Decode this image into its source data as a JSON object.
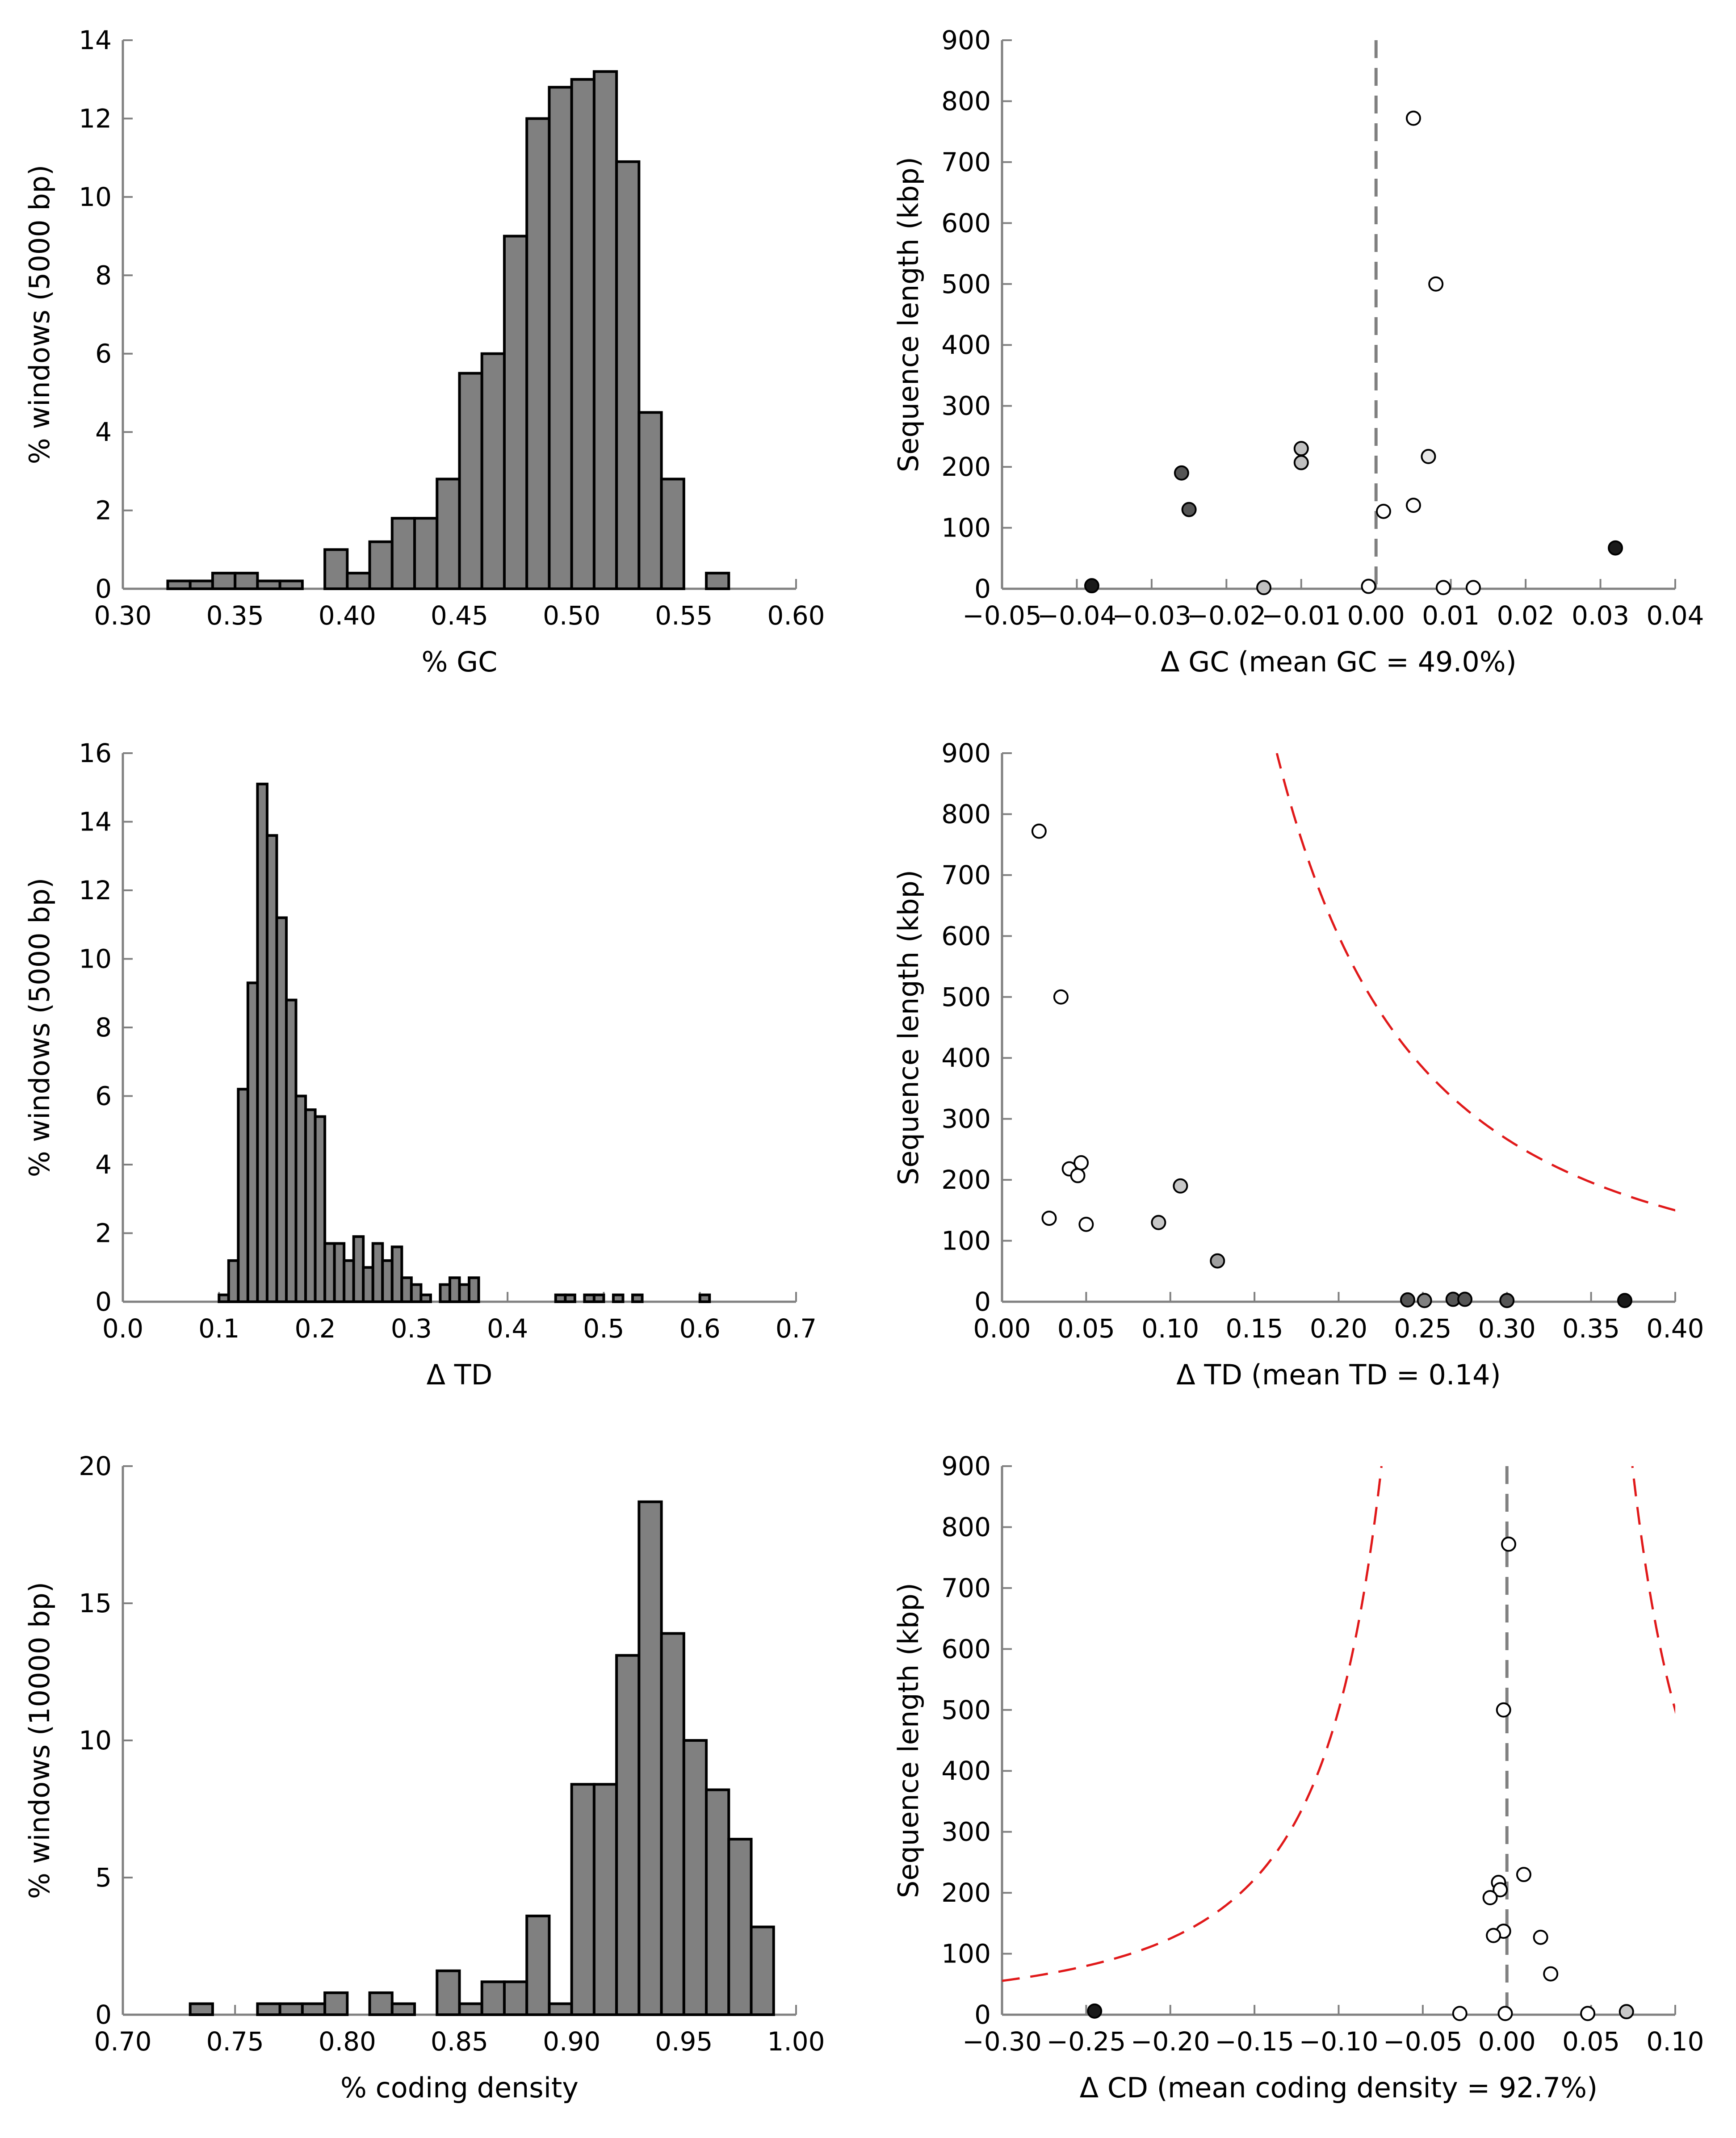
{
  "colors": {
    "bar_fill": "#808080",
    "bar_edge": "#000000",
    "axis": "#808080",
    "funnel": "#e0191a",
    "center_line": "#808080"
  },
  "chart_data": [
    {
      "id": "gc_hist",
      "type": "bar",
      "xlabel": "% GC",
      "ylabel": "% windows (5000 bp)",
      "xlim": [
        0.3,
        0.6
      ],
      "ylim": [
        0,
        14
      ],
      "xticks": [
        "0.30",
        "0.35",
        "0.40",
        "0.45",
        "0.50",
        "0.55",
        "0.60"
      ],
      "yticks": [
        "0",
        "2",
        "4",
        "6",
        "8",
        "10",
        "12",
        "14"
      ],
      "bin_width": 0.01,
      "bins": [
        {
          "x": 0.32,
          "value": 0.2
        },
        {
          "x": 0.33,
          "value": 0.2
        },
        {
          "x": 0.34,
          "value": 0.4
        },
        {
          "x": 0.35,
          "value": 0.4
        },
        {
          "x": 0.36,
          "value": 0.2
        },
        {
          "x": 0.37,
          "value": 0.2
        },
        {
          "x": 0.39,
          "value": 1.0
        },
        {
          "x": 0.4,
          "value": 0.4
        },
        {
          "x": 0.41,
          "value": 1.2
        },
        {
          "x": 0.42,
          "value": 1.8
        },
        {
          "x": 0.43,
          "value": 1.8
        },
        {
          "x": 0.44,
          "value": 2.8
        },
        {
          "x": 0.45,
          "value": 5.5
        },
        {
          "x": 0.46,
          "value": 6.0
        },
        {
          "x": 0.47,
          "value": 9.0
        },
        {
          "x": 0.48,
          "value": 12.0
        },
        {
          "x": 0.49,
          "value": 12.8
        },
        {
          "x": 0.5,
          "value": 13.0
        },
        {
          "x": 0.51,
          "value": 13.2
        },
        {
          "x": 0.52,
          "value": 10.9
        },
        {
          "x": 0.53,
          "value": 4.5
        },
        {
          "x": 0.54,
          "value": 2.8
        },
        {
          "x": 0.56,
          "value": 0.4
        }
      ]
    },
    {
      "id": "gc_scatter",
      "type": "scatter",
      "xlabel": "Δ GC (mean GC = 49.0%)",
      "ylabel": "Sequence length (kbp)",
      "xlim": [
        -0.05,
        0.04
      ],
      "ylim": [
        0,
        900
      ],
      "xticks": [
        "−0.05",
        "−0.04",
        "−0.03",
        "−0.02",
        "−0.01",
        "0.00",
        "0.01",
        "0.02",
        "0.03",
        "0.04"
      ],
      "yticks": [
        "0",
        "100",
        "200",
        "300",
        "400",
        "500",
        "600",
        "700",
        "800",
        "900"
      ],
      "center_line": 0.0,
      "funnel_k": 2.85,
      "points": [
        {
          "x": -0.038,
          "y": 5,
          "fill": "#1a1a1a"
        },
        {
          "x": -0.026,
          "y": 190,
          "fill": "#555555"
        },
        {
          "x": -0.025,
          "y": 130,
          "fill": "#555555"
        },
        {
          "x": -0.015,
          "y": 2,
          "fill": "#c0c0c0"
        },
        {
          "x": -0.01,
          "y": 230,
          "fill": "#c0c0c0"
        },
        {
          "x": -0.01,
          "y": 207,
          "fill": "#c0c0c0"
        },
        {
          "x": -0.001,
          "y": 4,
          "fill": "#ffffff"
        },
        {
          "x": 0.001,
          "y": 127,
          "fill": "#ffffff"
        },
        {
          "x": 0.005,
          "y": 772,
          "fill": "#ffffff"
        },
        {
          "x": 0.005,
          "y": 137,
          "fill": "#ffffff"
        },
        {
          "x": 0.007,
          "y": 217,
          "fill": "#e8e8e8"
        },
        {
          "x": 0.008,
          "y": 500,
          "fill": "#ffffff"
        },
        {
          "x": 0.009,
          "y": 2,
          "fill": "#ffffff"
        },
        {
          "x": 0.013,
          "y": 2,
          "fill": "#ffffff"
        },
        {
          "x": 0.032,
          "y": 67,
          "fill": "#1a1a1a"
        }
      ]
    },
    {
      "id": "td_hist",
      "type": "bar",
      "xlabel": "Δ TD",
      "ylabel": "% windows (5000 bp)",
      "xlim": [
        0.0,
        0.7
      ],
      "ylim": [
        0,
        16
      ],
      "xticks": [
        "0.0",
        "0.1",
        "0.2",
        "0.3",
        "0.4",
        "0.5",
        "0.6",
        "0.7"
      ],
      "yticks": [
        "0",
        "2",
        "4",
        "6",
        "8",
        "10",
        "12",
        "14",
        "16"
      ],
      "bin_width": 0.01,
      "bins": [
        {
          "x": 0.1,
          "value": 0.2
        },
        {
          "x": 0.11,
          "value": 1.2
        },
        {
          "x": 0.12,
          "value": 6.2
        },
        {
          "x": 0.13,
          "value": 9.3
        },
        {
          "x": 0.14,
          "value": 15.1
        },
        {
          "x": 0.15,
          "value": 13.6
        },
        {
          "x": 0.16,
          "value": 11.2
        },
        {
          "x": 0.17,
          "value": 8.8
        },
        {
          "x": 0.18,
          "value": 6.0
        },
        {
          "x": 0.19,
          "value": 5.6
        },
        {
          "x": 0.2,
          "value": 5.4
        },
        {
          "x": 0.21,
          "value": 1.7
        },
        {
          "x": 0.22,
          "value": 1.7
        },
        {
          "x": 0.23,
          "value": 1.2
        },
        {
          "x": 0.24,
          "value": 1.9
        },
        {
          "x": 0.25,
          "value": 1.0
        },
        {
          "x": 0.26,
          "value": 1.7
        },
        {
          "x": 0.27,
          "value": 1.2
        },
        {
          "x": 0.28,
          "value": 1.6
        },
        {
          "x": 0.29,
          "value": 0.7
        },
        {
          "x": 0.3,
          "value": 0.5
        },
        {
          "x": 0.31,
          "value": 0.2
        },
        {
          "x": 0.33,
          "value": 0.5
        },
        {
          "x": 0.34,
          "value": 0.7
        },
        {
          "x": 0.35,
          "value": 0.5
        },
        {
          "x": 0.36,
          "value": 0.7
        },
        {
          "x": 0.45,
          "value": 0.2
        },
        {
          "x": 0.46,
          "value": 0.2
        },
        {
          "x": 0.48,
          "value": 0.2
        },
        {
          "x": 0.49,
          "value": 0.2
        },
        {
          "x": 0.51,
          "value": 0.2
        },
        {
          "x": 0.53,
          "value": 0.2
        },
        {
          "x": 0.6,
          "value": 0.2
        }
      ]
    },
    {
      "id": "td_scatter",
      "type": "scatter",
      "xlabel": "Δ TD (mean TD = 0.14)",
      "ylabel": "Sequence length (kbp)",
      "xlim": [
        0.0,
        0.4
      ],
      "ylim": [
        0,
        900
      ],
      "xticks": [
        "0.00",
        "0.05",
        "0.10",
        "0.15",
        "0.20",
        "0.25",
        "0.30",
        "0.35",
        "0.40"
      ],
      "yticks": [
        "0",
        "100",
        "200",
        "300",
        "400",
        "500",
        "600",
        "700",
        "800",
        "900"
      ],
      "funnel_k": 24.0,
      "points": [
        {
          "x": 0.022,
          "y": 772,
          "fill": "#ffffff"
        },
        {
          "x": 0.035,
          "y": 500,
          "fill": "#ffffff"
        },
        {
          "x": 0.04,
          "y": 218,
          "fill": "#ffffff"
        },
        {
          "x": 0.045,
          "y": 207,
          "fill": "#ffffff"
        },
        {
          "x": 0.047,
          "y": 228,
          "fill": "#ffffff"
        },
        {
          "x": 0.028,
          "y": 137,
          "fill": "#ffffff"
        },
        {
          "x": 0.05,
          "y": 127,
          "fill": "#ffffff"
        },
        {
          "x": 0.093,
          "y": 130,
          "fill": "#c8c8c8"
        },
        {
          "x": 0.106,
          "y": 190,
          "fill": "#c8c8c8"
        },
        {
          "x": 0.128,
          "y": 67,
          "fill": "#a0a0a0"
        },
        {
          "x": 0.241,
          "y": 3,
          "fill": "#555555"
        },
        {
          "x": 0.251,
          "y": 2,
          "fill": "#808080"
        },
        {
          "x": 0.268,
          "y": 4,
          "fill": "#555555"
        },
        {
          "x": 0.275,
          "y": 4,
          "fill": "#555555"
        },
        {
          "x": 0.3,
          "y": 2,
          "fill": "#555555"
        },
        {
          "x": 0.37,
          "y": 2,
          "fill": "#1a1a1a"
        }
      ]
    },
    {
      "id": "cd_hist",
      "type": "bar",
      "xlabel": "% coding density",
      "ylabel": "% windows (10000 bp)",
      "xlim": [
        0.7,
        1.0
      ],
      "ylim": [
        0,
        20
      ],
      "xticks": [
        "0.70",
        "0.75",
        "0.80",
        "0.85",
        "0.90",
        "0.95",
        "1.00"
      ],
      "yticks": [
        "0",
        "5",
        "10",
        "15",
        "20"
      ],
      "bin_width": 0.01,
      "bins": [
        {
          "x": 0.73,
          "value": 0.4
        },
        {
          "x": 0.76,
          "value": 0.4
        },
        {
          "x": 0.77,
          "value": 0.4
        },
        {
          "x": 0.78,
          "value": 0.4
        },
        {
          "x": 0.79,
          "value": 0.8
        },
        {
          "x": 0.81,
          "value": 0.8
        },
        {
          "x": 0.82,
          "value": 0.4
        },
        {
          "x": 0.84,
          "value": 1.6
        },
        {
          "x": 0.85,
          "value": 0.4
        },
        {
          "x": 0.86,
          "value": 1.2
        },
        {
          "x": 0.87,
          "value": 1.2
        },
        {
          "x": 0.88,
          "value": 3.6
        },
        {
          "x": 0.89,
          "value": 0.4
        },
        {
          "x": 0.9,
          "value": 8.4
        },
        {
          "x": 0.91,
          "value": 8.4
        },
        {
          "x": 0.92,
          "value": 13.1
        },
        {
          "x": 0.93,
          "value": 18.7
        },
        {
          "x": 0.94,
          "value": 13.9
        },
        {
          "x": 0.95,
          "value": 10.0
        },
        {
          "x": 0.96,
          "value": 8.2
        },
        {
          "x": 0.97,
          "value": 6.4
        },
        {
          "x": 0.98,
          "value": 3.2
        }
      ]
    },
    {
      "id": "cd_scatter",
      "type": "scatter",
      "xlabel": "Δ CD (mean coding density = 92.7%)",
      "ylabel": "Sequence length (kbp)",
      "xlim": [
        -0.3,
        0.1
      ],
      "ylim": [
        0,
        900
      ],
      "xticks": [
        "−0.30",
        "−0.25",
        "−0.20",
        "−0.15",
        "−0.10",
        "−0.05",
        "0.00",
        "0.05",
        "0.10"
      ],
      "yticks": [
        "0",
        "100",
        "200",
        "300",
        "400",
        "500",
        "600",
        "700",
        "800",
        "900"
      ],
      "center_line": 0.0,
      "funnel_k": 5.0,
      "points": [
        {
          "x": -0.245,
          "y": 6,
          "fill": "#1a1a1a"
        },
        {
          "x": -0.028,
          "y": 2,
          "fill": "#ffffff"
        },
        {
          "x": 0.001,
          "y": 772,
          "fill": "#ffffff"
        },
        {
          "x": -0.002,
          "y": 500,
          "fill": "#ffffff"
        },
        {
          "x": 0.01,
          "y": 230,
          "fill": "#ffffff"
        },
        {
          "x": -0.005,
          "y": 217,
          "fill": "#ffffff"
        },
        {
          "x": -0.004,
          "y": 205,
          "fill": "#ffffff"
        },
        {
          "x": -0.01,
          "y": 192,
          "fill": "#ffffff"
        },
        {
          "x": -0.002,
          "y": 137,
          "fill": "#ffffff"
        },
        {
          "x": -0.008,
          "y": 130,
          "fill": "#ffffff"
        },
        {
          "x": 0.02,
          "y": 127,
          "fill": "#ffffff"
        },
        {
          "x": 0.026,
          "y": 67,
          "fill": "#ffffff"
        },
        {
          "x": -0.001,
          "y": 2,
          "fill": "#ffffff"
        },
        {
          "x": 0.048,
          "y": 2,
          "fill": "#ffffff"
        },
        {
          "x": 0.071,
          "y": 5,
          "fill": "#c8c8c8"
        }
      ]
    }
  ]
}
